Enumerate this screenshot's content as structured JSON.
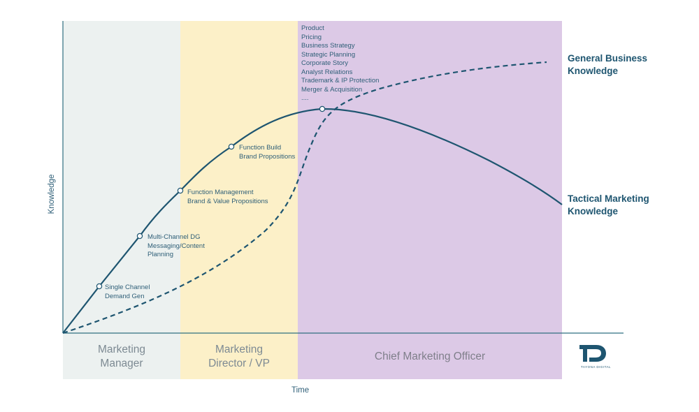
{
  "axes": {
    "x_label": "Time",
    "y_label": "Knowledge"
  },
  "stages": [
    {
      "label": "Marketing\nManager",
      "color": "#ecf1f0",
      "text_color": "#7d8a93"
    },
    {
      "label": "Marketing\nDirector / VP",
      "color": "#fcf0c8",
      "text_color": "#7d8a93"
    },
    {
      "label": "Chief Marketing Officer",
      "color": "#dcc9e6",
      "text_color": "#7f7f8a"
    }
  ],
  "series": [
    {
      "name": "General Business\nKnowledge",
      "style": "dashed",
      "color": "#1e5570"
    },
    {
      "name": "Tactical Marketing\nKnowledge",
      "style": "solid",
      "color": "#1e5570"
    }
  ],
  "annotations": [
    {
      "text": "Single Channel\nDemand Gen"
    },
    {
      "text": "Multi-Channel DG\nMessaging/Content\nPlanning"
    },
    {
      "text": "Function Management\nBrand & Value Propositions"
    },
    {
      "text": "Function Build\nBrand Propositions"
    },
    {
      "text": "Product\nPricing\nBusiness Strategy\nStrategic Planning\nCorporate Story\nAnalyst Relations\nTrademark & IP Protection\nMerger & Acquisition\n...."
    }
  ],
  "logo": {
    "icon": "tayona-logo-icon",
    "text": "TAYONA DIGITAL"
  },
  "colors": {
    "axis": "#2f6f80",
    "curve": "#1e5570",
    "annotation": "#2f5f78"
  }
}
